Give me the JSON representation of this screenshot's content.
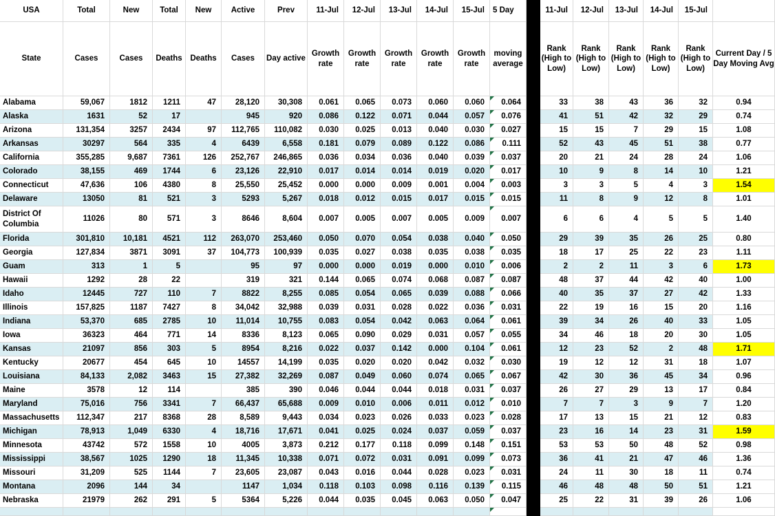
{
  "colors": {
    "band": "#daeef3",
    "highlight": "#ffff00",
    "gridline": "#d9d9d9",
    "divider": "#000000",
    "flag": "#217346"
  },
  "header": {
    "row1": [
      "USA",
      "Total",
      "New",
      "Total",
      "New",
      "Active",
      "Prev",
      "11-Jul",
      "12-Jul",
      "13-Jul",
      "14-Jul",
      "15-Jul",
      "5 Day",
      "11-Jul",
      "12-Jul",
      "13-Jul",
      "14-Jul",
      "15-Jul",
      ""
    ],
    "row2": [
      "State",
      "Cases",
      "Cases",
      "Deaths",
      "Deaths",
      "Cases",
      "Day active",
      "Growth rate",
      "Growth rate",
      "Growth rate",
      "Growth rate",
      "Growth rate",
      "moving average",
      "Rank (High to Low)",
      "Rank (High to Low)",
      "Rank (High to Low)",
      "Rank (High to Low)",
      "Rank (High to Low)",
      "Current Day / 5 Day Moving Avg"
    ]
  },
  "chart_data": {
    "type": "table",
    "columns": [
      "State",
      "Total Cases",
      "New Cases",
      "Total Deaths",
      "New Deaths",
      "Active Cases",
      "Prev Day active",
      "11-Jul Growth rate",
      "12-Jul Growth rate",
      "13-Jul Growth rate",
      "14-Jul Growth rate",
      "15-Jul Growth rate",
      "5 Day moving average",
      "11-Jul Rank (High to Low)",
      "12-Jul Rank (High to Low)",
      "13-Jul Rank (High to Low)",
      "14-Jul Rank (High to Low)",
      "15-Jul Rank (High to Low)",
      "Current Day / 5 Day Moving Avg"
    ]
  },
  "rows": [
    {
      "state": "Alabama",
      "cases": "59,067",
      "new_cases": "1812",
      "deaths": "1211",
      "new_deaths": "47",
      "active": "28,120",
      "prev": "30,308",
      "growth": [
        "0.061",
        "0.065",
        "0.073",
        "0.060",
        "0.060"
      ],
      "avg": "0.064",
      "ranks": [
        "33",
        "38",
        "43",
        "36",
        "32"
      ],
      "ratio": "0.94",
      "highlight": false
    },
    {
      "state": "Alaska",
      "cases": "1631",
      "new_cases": "52",
      "deaths": "17",
      "new_deaths": "",
      "active": "945",
      "prev": "920",
      "growth": [
        "0.086",
        "0.122",
        "0.071",
        "0.044",
        "0.057"
      ],
      "avg": "0.076",
      "ranks": [
        "41",
        "51",
        "42",
        "32",
        "29"
      ],
      "ratio": "0.74",
      "highlight": false
    },
    {
      "state": "Arizona",
      "cases": "131,354",
      "new_cases": "3257",
      "deaths": "2434",
      "new_deaths": "97",
      "active": "112,765",
      "prev": "110,082",
      "growth": [
        "0.030",
        "0.025",
        "0.013",
        "0.040",
        "0.030"
      ],
      "avg": "0.027",
      "ranks": [
        "15",
        "15",
        "7",
        "29",
        "15"
      ],
      "ratio": "1.08",
      "highlight": false
    },
    {
      "state": "Arkansas",
      "cases": "30297",
      "new_cases": "564",
      "deaths": "335",
      "new_deaths": "4",
      "active": "6439",
      "prev": "6,558",
      "growth": [
        "0.181",
        "0.079",
        "0.089",
        "0.122",
        "0.086"
      ],
      "avg": "0.111",
      "ranks": [
        "52",
        "43",
        "45",
        "51",
        "38"
      ],
      "ratio": "0.77",
      "highlight": false
    },
    {
      "state": "California",
      "cases": "355,285",
      "new_cases": "9,687",
      "deaths": "7361",
      "new_deaths": "126",
      "active": "252,767",
      "prev": "246,865",
      "growth": [
        "0.036",
        "0.034",
        "0.036",
        "0.040",
        "0.039"
      ],
      "avg": "0.037",
      "ranks": [
        "20",
        "21",
        "24",
        "28",
        "24"
      ],
      "ratio": "1.06",
      "highlight": false
    },
    {
      "state": "Colorado",
      "cases": "38,155",
      "new_cases": "469",
      "deaths": "1744",
      "new_deaths": "6",
      "active": "23,126",
      "prev": "22,910",
      "growth": [
        "0.017",
        "0.014",
        "0.014",
        "0.019",
        "0.020"
      ],
      "avg": "0.017",
      "ranks": [
        "10",
        "9",
        "8",
        "14",
        "10"
      ],
      "ratio": "1.21",
      "highlight": false
    },
    {
      "state": "Connecticut",
      "cases": "47,636",
      "new_cases": "106",
      "deaths": "4380",
      "new_deaths": "8",
      "active": "25,550",
      "prev": "25,452",
      "growth": [
        "0.000",
        "0.000",
        "0.009",
        "0.001",
        "0.004"
      ],
      "avg": "0.003",
      "ranks": [
        "3",
        "3",
        "5",
        "4",
        "3"
      ],
      "ratio": "1.54",
      "highlight": true
    },
    {
      "state": "Delaware",
      "cases": "13050",
      "new_cases": "81",
      "deaths": "521",
      "new_deaths": "3",
      "active": "5293",
      "prev": "5,267",
      "growth": [
        "0.018",
        "0.012",
        "0.015",
        "0.017",
        "0.015"
      ],
      "avg": "0.015",
      "ranks": [
        "11",
        "8",
        "9",
        "12",
        "8"
      ],
      "ratio": "1.01",
      "highlight": false
    },
    {
      "state": "District Of Columbia",
      "cases": "11026",
      "new_cases": "80",
      "deaths": "571",
      "new_deaths": "3",
      "active": "8646",
      "prev": "8,604",
      "growth": [
        "0.007",
        "0.005",
        "0.007",
        "0.005",
        "0.009"
      ],
      "avg": "0.007",
      "ranks": [
        "6",
        "6",
        "4",
        "5",
        "5"
      ],
      "ratio": "1.40",
      "highlight": false,
      "tall": true
    },
    {
      "state": "Florida",
      "cases": "301,810",
      "new_cases": "10,181",
      "deaths": "4521",
      "new_deaths": "112",
      "active": "263,070",
      "prev": "253,460",
      "growth": [
        "0.050",
        "0.070",
        "0.054",
        "0.038",
        "0.040"
      ],
      "avg": "0.050",
      "ranks": [
        "29",
        "39",
        "35",
        "26",
        "25"
      ],
      "ratio": "0.80",
      "highlight": false
    },
    {
      "state": "Georgia",
      "cases": "127,834",
      "new_cases": "3871",
      "deaths": "3091",
      "new_deaths": "37",
      "active": "104,773",
      "prev": "100,939",
      "growth": [
        "0.035",
        "0.027",
        "0.038",
        "0.035",
        "0.038"
      ],
      "avg": "0.035",
      "ranks": [
        "18",
        "17",
        "25",
        "22",
        "23"
      ],
      "ratio": "1.11",
      "highlight": false
    },
    {
      "state": "Guam",
      "cases": "313",
      "new_cases": "1",
      "deaths": "5",
      "new_deaths": "",
      "active": "95",
      "prev": "97",
      "growth": [
        "0.000",
        "0.000",
        "0.019",
        "0.000",
        "0.010"
      ],
      "avg": "0.006",
      "ranks": [
        "2",
        "2",
        "11",
        "3",
        "6"
      ],
      "ratio": "1.73",
      "highlight": true
    },
    {
      "state": "Hawaii",
      "cases": "1292",
      "new_cases": "28",
      "deaths": "22",
      "new_deaths": "",
      "active": "319",
      "prev": "321",
      "growth": [
        "0.144",
        "0.065",
        "0.074",
        "0.068",
        "0.087"
      ],
      "avg": "0.087",
      "ranks": [
        "48",
        "37",
        "44",
        "42",
        "40"
      ],
      "ratio": "1.00",
      "highlight": false
    },
    {
      "state": "Idaho",
      "cases": "12445",
      "new_cases": "727",
      "deaths": "110",
      "new_deaths": "7",
      "active": "8822",
      "prev": "8,255",
      "growth": [
        "0.085",
        "0.054",
        "0.065",
        "0.039",
        "0.088"
      ],
      "avg": "0.066",
      "ranks": [
        "40",
        "35",
        "37",
        "27",
        "42"
      ],
      "ratio": "1.33",
      "highlight": false
    },
    {
      "state": "Illinois",
      "cases": "157,825",
      "new_cases": "1187",
      "deaths": "7427",
      "new_deaths": "8",
      "active": "34,042",
      "prev": "32,988",
      "growth": [
        "0.039",
        "0.031",
        "0.028",
        "0.022",
        "0.036"
      ],
      "avg": "0.031",
      "ranks": [
        "22",
        "19",
        "16",
        "15",
        "20"
      ],
      "ratio": "1.16",
      "highlight": false
    },
    {
      "state": "Indiana",
      "cases": "53,370",
      "new_cases": "685",
      "deaths": "2785",
      "new_deaths": "10",
      "active": "11,014",
      "prev": "10,755",
      "growth": [
        "0.083",
        "0.054",
        "0.042",
        "0.063",
        "0.064"
      ],
      "avg": "0.061",
      "ranks": [
        "39",
        "34",
        "26",
        "40",
        "33"
      ],
      "ratio": "1.05",
      "highlight": false
    },
    {
      "state": "Iowa",
      "cases": "36323",
      "new_cases": "464",
      "deaths": "771",
      "new_deaths": "14",
      "active": "8336",
      "prev": "8,123",
      "growth": [
        "0.065",
        "0.090",
        "0.029",
        "0.031",
        "0.057"
      ],
      "avg": "0.055",
      "ranks": [
        "34",
        "46",
        "18",
        "20",
        "30"
      ],
      "ratio": "1.05",
      "highlight": false
    },
    {
      "state": "Kansas",
      "cases": "21097",
      "new_cases": "856",
      "deaths": "303",
      "new_deaths": "5",
      "active": "8954",
      "prev": "8,216",
      "growth": [
        "0.022",
        "0.037",
        "0.142",
        "0.000",
        "0.104"
      ],
      "avg": "0.061",
      "ranks": [
        "12",
        "23",
        "52",
        "2",
        "48"
      ],
      "ratio": "1.71",
      "highlight": true
    },
    {
      "state": "Kentucky",
      "cases": "20677",
      "new_cases": "454",
      "deaths": "645",
      "new_deaths": "10",
      "active": "14557",
      "prev": "14,199",
      "growth": [
        "0.035",
        "0.020",
        "0.020",
        "0.042",
        "0.032"
      ],
      "avg": "0.030",
      "ranks": [
        "19",
        "12",
        "12",
        "31",
        "18"
      ],
      "ratio": "1.07",
      "highlight": false
    },
    {
      "state": "Louisiana",
      "cases": "84,133",
      "new_cases": "2,082",
      "deaths": "3463",
      "new_deaths": "15",
      "active": "27,382",
      "prev": "32,269",
      "growth": [
        "0.087",
        "0.049",
        "0.060",
        "0.074",
        "0.065"
      ],
      "avg": "0.067",
      "ranks": [
        "42",
        "30",
        "36",
        "45",
        "34"
      ],
      "ratio": "0.96",
      "highlight": false
    },
    {
      "state": "Maine",
      "cases": "3578",
      "new_cases": "12",
      "deaths": "114",
      "new_deaths": "",
      "active": "385",
      "prev": "390",
      "growth": [
        "0.046",
        "0.044",
        "0.044",
        "0.018",
        "0.031"
      ],
      "avg": "0.037",
      "ranks": [
        "26",
        "27",
        "29",
        "13",
        "17"
      ],
      "ratio": "0.84",
      "highlight": false
    },
    {
      "state": "Maryland",
      "cases": "75,016",
      "new_cases": "756",
      "deaths": "3341",
      "new_deaths": "7",
      "active": "66,437",
      "prev": "65,688",
      "growth": [
        "0.009",
        "0.010",
        "0.006",
        "0.011",
        "0.012"
      ],
      "avg": "0.010",
      "ranks": [
        "7",
        "7",
        "3",
        "9",
        "7"
      ],
      "ratio": "1.20",
      "highlight": false
    },
    {
      "state": "Massachusetts",
      "cases": "112,347",
      "new_cases": "217",
      "deaths": "8368",
      "new_deaths": "28",
      "active": "8,589",
      "prev": "9,443",
      "growth": [
        "0.034",
        "0.023",
        "0.026",
        "0.033",
        "0.023"
      ],
      "avg": "0.028",
      "ranks": [
        "17",
        "13",
        "15",
        "21",
        "12"
      ],
      "ratio": "0.83",
      "highlight": false
    },
    {
      "state": "Michigan",
      "cases": "78,913",
      "new_cases": "1,049",
      "deaths": "6330",
      "new_deaths": "4",
      "active": "18,716",
      "prev": "17,671",
      "growth": [
        "0.041",
        "0.025",
        "0.024",
        "0.037",
        "0.059"
      ],
      "avg": "0.037",
      "ranks": [
        "23",
        "16",
        "14",
        "23",
        "31"
      ],
      "ratio": "1.59",
      "highlight": true
    },
    {
      "state": "Minnesota",
      "cases": "43742",
      "new_cases": "572",
      "deaths": "1558",
      "new_deaths": "10",
      "active": "4005",
      "prev": "3,873",
      "growth": [
        "0.212",
        "0.177",
        "0.118",
        "0.099",
        "0.148"
      ],
      "avg": "0.151",
      "ranks": [
        "53",
        "53",
        "50",
        "48",
        "52"
      ],
      "ratio": "0.98",
      "highlight": false
    },
    {
      "state": "Mississippi",
      "cases": "38,567",
      "new_cases": "1025",
      "deaths": "1290",
      "new_deaths": "18",
      "active": "11,345",
      "prev": "10,338",
      "growth": [
        "0.071",
        "0.072",
        "0.031",
        "0.091",
        "0.099"
      ],
      "avg": "0.073",
      "ranks": [
        "36",
        "41",
        "21",
        "47",
        "46"
      ],
      "ratio": "1.36",
      "highlight": false
    },
    {
      "state": "Missouri",
      "cases": "31,209",
      "new_cases": "525",
      "deaths": "1144",
      "new_deaths": "7",
      "active": "23,605",
      "prev": "23,087",
      "growth": [
        "0.043",
        "0.016",
        "0.044",
        "0.028",
        "0.023"
      ],
      "avg": "0.031",
      "ranks": [
        "24",
        "11",
        "30",
        "18",
        "11"
      ],
      "ratio": "0.74",
      "highlight": false
    },
    {
      "state": "Montana",
      "cases": "2096",
      "new_cases": "144",
      "deaths": "34",
      "new_deaths": "",
      "active": "1147",
      "prev": "1,034",
      "growth": [
        "0.118",
        "0.103",
        "0.098",
        "0.116",
        "0.139"
      ],
      "avg": "0.115",
      "ranks": [
        "46",
        "48",
        "48",
        "50",
        "51"
      ],
      "ratio": "1.21",
      "highlight": false
    },
    {
      "state": "Nebraska",
      "cases": "21979",
      "new_cases": "262",
      "deaths": "291",
      "new_deaths": "5",
      "active": "5364",
      "prev": "5,226",
      "growth": [
        "0.044",
        "0.035",
        "0.045",
        "0.063",
        "0.050"
      ],
      "avg": "0.047",
      "ranks": [
        "25",
        "22",
        "31",
        "39",
        "26"
      ],
      "ratio": "1.06",
      "highlight": false
    }
  ],
  "partial_row": true
}
